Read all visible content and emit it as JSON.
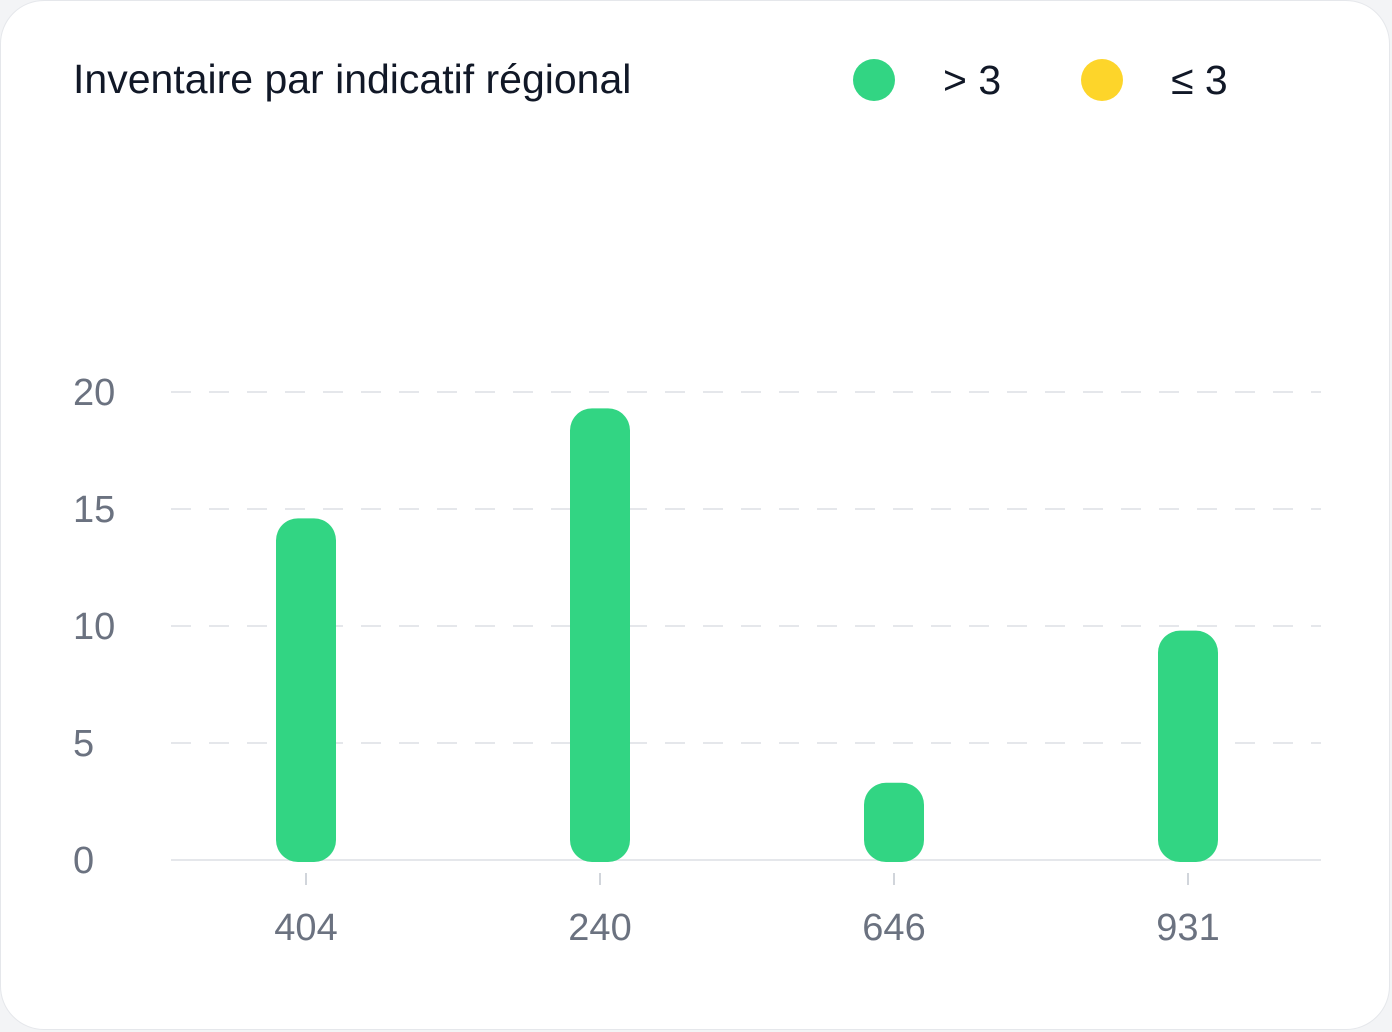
{
  "chart_data": {
    "type": "bar",
    "title": "Inventaire par indicatif régional",
    "categories": [
      "404",
      "240",
      "646",
      "931"
    ],
    "values": [
      14.6,
      19.3,
      3.3,
      9.8
    ],
    "ylim": [
      0,
      20
    ],
    "yticks": [
      "0",
      "5",
      "10",
      "15",
      "20"
    ],
    "grid": true,
    "legend_position": "top-right",
    "legend": [
      {
        "label": "> 3",
        "color": "#32d583"
      },
      {
        "label": "≤ 3",
        "color": "#fdd52a"
      }
    ],
    "threshold": 3,
    "colors": {
      "above": "#32d583",
      "below": "#fdd52a",
      "grid": "#e5e7eb",
      "axis": "#e5e7eb",
      "tick_text": "#6b7280"
    }
  }
}
